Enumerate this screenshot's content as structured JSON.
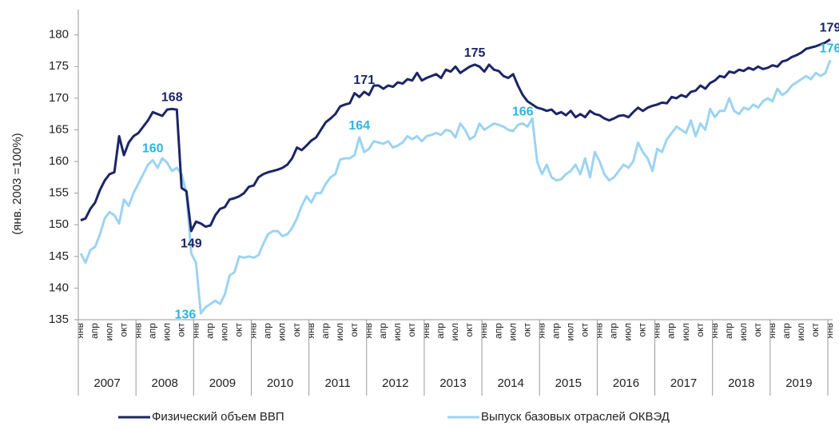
{
  "chart_data": {
    "type": "line",
    "y_label": "(янв. 2003 =100%)",
    "ylim": [
      135,
      184
    ],
    "yticks": [
      135,
      140,
      145,
      150,
      155,
      160,
      165,
      170,
      175,
      180
    ],
    "categories": [
      "янв",
      null,
      null,
      "апр",
      null,
      null,
      "июл",
      null,
      null,
      "окт",
      null,
      null,
      "янв",
      null,
      null,
      "апр",
      null,
      null,
      "июл",
      null,
      null,
      "окт",
      null,
      null,
      "янв",
      null,
      null,
      "апр",
      null,
      null,
      "июл",
      null,
      null,
      "окт",
      null,
      null,
      "янв",
      null,
      null,
      "апр",
      null,
      null,
      "июл",
      null,
      null,
      "окт",
      null,
      null,
      "янв",
      null,
      null,
      "апр",
      null,
      null,
      "июл",
      null,
      null,
      "окт",
      null,
      null,
      "янв",
      null,
      null,
      "апр",
      null,
      null,
      "июл",
      null,
      null,
      "окт",
      null,
      null,
      "янв",
      null,
      null,
      "апр",
      null,
      null,
      "июл",
      null,
      null,
      "окт",
      null,
      null,
      "янв",
      null,
      null,
      "апр",
      null,
      null,
      "июл",
      null,
      null,
      "окт",
      null,
      null,
      "янв",
      null,
      null,
      "апр",
      null,
      null,
      "июл",
      null,
      null,
      "окт",
      null,
      null,
      "янв",
      null,
      null,
      "апр",
      null,
      null,
      "июл",
      null,
      null,
      "окт",
      null,
      null,
      "янв",
      null,
      null,
      "апр",
      null,
      null,
      "июл",
      null,
      null,
      "окт",
      null,
      null,
      "янв",
      null,
      null,
      "апр",
      null,
      null,
      "июл",
      null,
      null,
      "окт",
      null,
      null,
      "янв",
      null,
      null,
      "апр",
      null,
      null,
      "июл",
      null,
      null,
      "окт",
      null,
      null,
      "янв"
    ],
    "years": [
      "2007",
      "2008",
      "2009",
      "2010",
      "2011",
      "2012",
      "2013",
      "2014",
      "2015",
      "2016",
      "2017",
      "2018",
      "2019"
    ],
    "series": [
      {
        "name": "Физический объем ВВП",
        "color": "#1c2566",
        "label_color": "#1c2566",
        "values": [
          150.7,
          151,
          152.5,
          153.5,
          155.5,
          157,
          158,
          158.3,
          164,
          161,
          163,
          164,
          164.5,
          165.5,
          166.5,
          167.8,
          167.5,
          167.2,
          168.2,
          168.3,
          168.2,
          155.8,
          155.3,
          149,
          150.5,
          150.2,
          149.7,
          149.9,
          151.5,
          152.5,
          152.8,
          154,
          154.2,
          154.5,
          155,
          156,
          156.2,
          157.5,
          158,
          158.3,
          158.5,
          158.7,
          159,
          159.5,
          160.5,
          162.2,
          161.8,
          162.5,
          163.3,
          163.8,
          165,
          166.2,
          166.8,
          167.5,
          168.7,
          169,
          169.2,
          170.8,
          170.2,
          171,
          170.5,
          172,
          172,
          171.5,
          172,
          171.8,
          172.5,
          172.3,
          173,
          172.8,
          174,
          172.8,
          173.2,
          173.5,
          173.8,
          173.2,
          174.5,
          174.2,
          175,
          174,
          174.5,
          175,
          175.3,
          175,
          174.2,
          175.3,
          174.5,
          174.3,
          173.5,
          173.2,
          173.8,
          172,
          170.5,
          169.5,
          169,
          168.5,
          168.3,
          168,
          168.2,
          167.5,
          167.8,
          167.3,
          168,
          167,
          167.5,
          167,
          168,
          167.5,
          167.3,
          166.8,
          166.5,
          166.8,
          167.2,
          167.3,
          167,
          167.8,
          168.5,
          168,
          168.5,
          168.8,
          169,
          169.3,
          169.2,
          170.2,
          170,
          170.5,
          170.2,
          171,
          171.2,
          172,
          171.5,
          172.4,
          172.8,
          173.5,
          173.3,
          174.2,
          174,
          174.5,
          174.3,
          174.8,
          174.5,
          175,
          174.6,
          174.8,
          175.2,
          175,
          175.8,
          176,
          176.5,
          176.8,
          177.2,
          177.8,
          178,
          178.2,
          178.5,
          178.8,
          179.3
        ]
      },
      {
        "name": "Выпуск базовых отраслей ОКВЭД",
        "color": "#9dd3f2",
        "label_color": "#2fb4de",
        "values": [
          145.5,
          144,
          146,
          146.5,
          148.5,
          151,
          152,
          151.5,
          150.2,
          154,
          153,
          155,
          156.5,
          158,
          159.5,
          160.2,
          159,
          160.5,
          159.8,
          158.5,
          159,
          158,
          155,
          145.5,
          144,
          136,
          137,
          137.5,
          138,
          137.5,
          139,
          142,
          142.5,
          145,
          144.8,
          145,
          144.8,
          145.2,
          147,
          148.5,
          149,
          149,
          148.2,
          148.5,
          149.5,
          151,
          153,
          154.5,
          153.5,
          155,
          155,
          156.5,
          157.5,
          158,
          160.3,
          160.5,
          160.5,
          161,
          163.8,
          161.5,
          162,
          163.2,
          163,
          162.8,
          163.2,
          162.2,
          162.5,
          163,
          164,
          163.5,
          164,
          163.2,
          164,
          164.2,
          164.5,
          164.2,
          165,
          164.8,
          163.8,
          166,
          165,
          163.5,
          164,
          166,
          165,
          165.5,
          166,
          165.8,
          165.5,
          165,
          164.8,
          165.8,
          166,
          165.5,
          166.8,
          160,
          158,
          159.5,
          157.5,
          157,
          157.2,
          158,
          158.5,
          159.5,
          158,
          160.5,
          157.5,
          161.5,
          160,
          158,
          157,
          157.5,
          158.5,
          159.5,
          159,
          160,
          163,
          161.5,
          160.5,
          158.5,
          162,
          161.5,
          163.5,
          164.5,
          165.5,
          165,
          164.5,
          166.5,
          164,
          166,
          165,
          168.3,
          167,
          168,
          168,
          170,
          168,
          167.5,
          168.5,
          168.2,
          169,
          168.5,
          169.5,
          170,
          169.5,
          171.5,
          170.5,
          171,
          172,
          172.5,
          173,
          173.5,
          173,
          174,
          173.5,
          174,
          176
        ]
      }
    ],
    "annotations": [
      {
        "label": "168",
        "series": 0,
        "index": 19,
        "position": "above"
      },
      {
        "label": "149",
        "series": 0,
        "index": 23,
        "position": "below"
      },
      {
        "label": "171",
        "series": 0,
        "index": 59,
        "position": "above"
      },
      {
        "label": "175",
        "series": 0,
        "index": 82,
        "position": "above"
      },
      {
        "label": "179",
        "series": 0,
        "index": 156,
        "position": "above"
      },
      {
        "label": "160",
        "series": 1,
        "index": 15,
        "position": "above"
      },
      {
        "label": "136",
        "series": 1,
        "index": 25,
        "position": "left"
      },
      {
        "label": "164",
        "series": 1,
        "index": 58,
        "position": "above"
      },
      {
        "label": "166",
        "series": 1,
        "index": 92,
        "position": "above"
      },
      {
        "label": "176",
        "series": 1,
        "index": 156,
        "position": "above"
      }
    ]
  }
}
